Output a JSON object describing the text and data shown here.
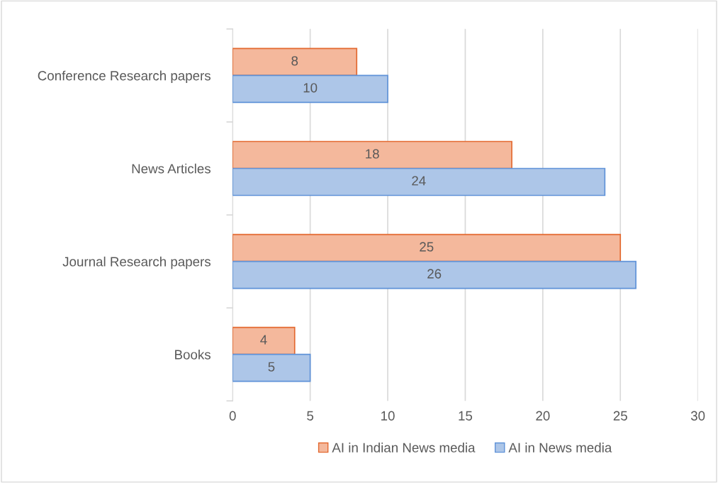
{
  "chart_data": {
    "type": "bar",
    "orientation": "horizontal",
    "categories": [
      "Conference Research papers",
      "News Articles",
      "Journal Research papers",
      "Books"
    ],
    "series": [
      {
        "name": "AI in Indian News media",
        "color": "#f4b89c",
        "values": [
          8,
          18,
          25,
          4
        ]
      },
      {
        "name": "AI in News media",
        "color": "#adc6e8",
        "values": [
          10,
          24,
          26,
          5
        ]
      }
    ],
    "xlim": [
      0,
      30
    ],
    "xticks": [
      0,
      5,
      10,
      15,
      20,
      25,
      30
    ],
    "grid": "x",
    "legend": "bottom",
    "data_labels": true
  }
}
